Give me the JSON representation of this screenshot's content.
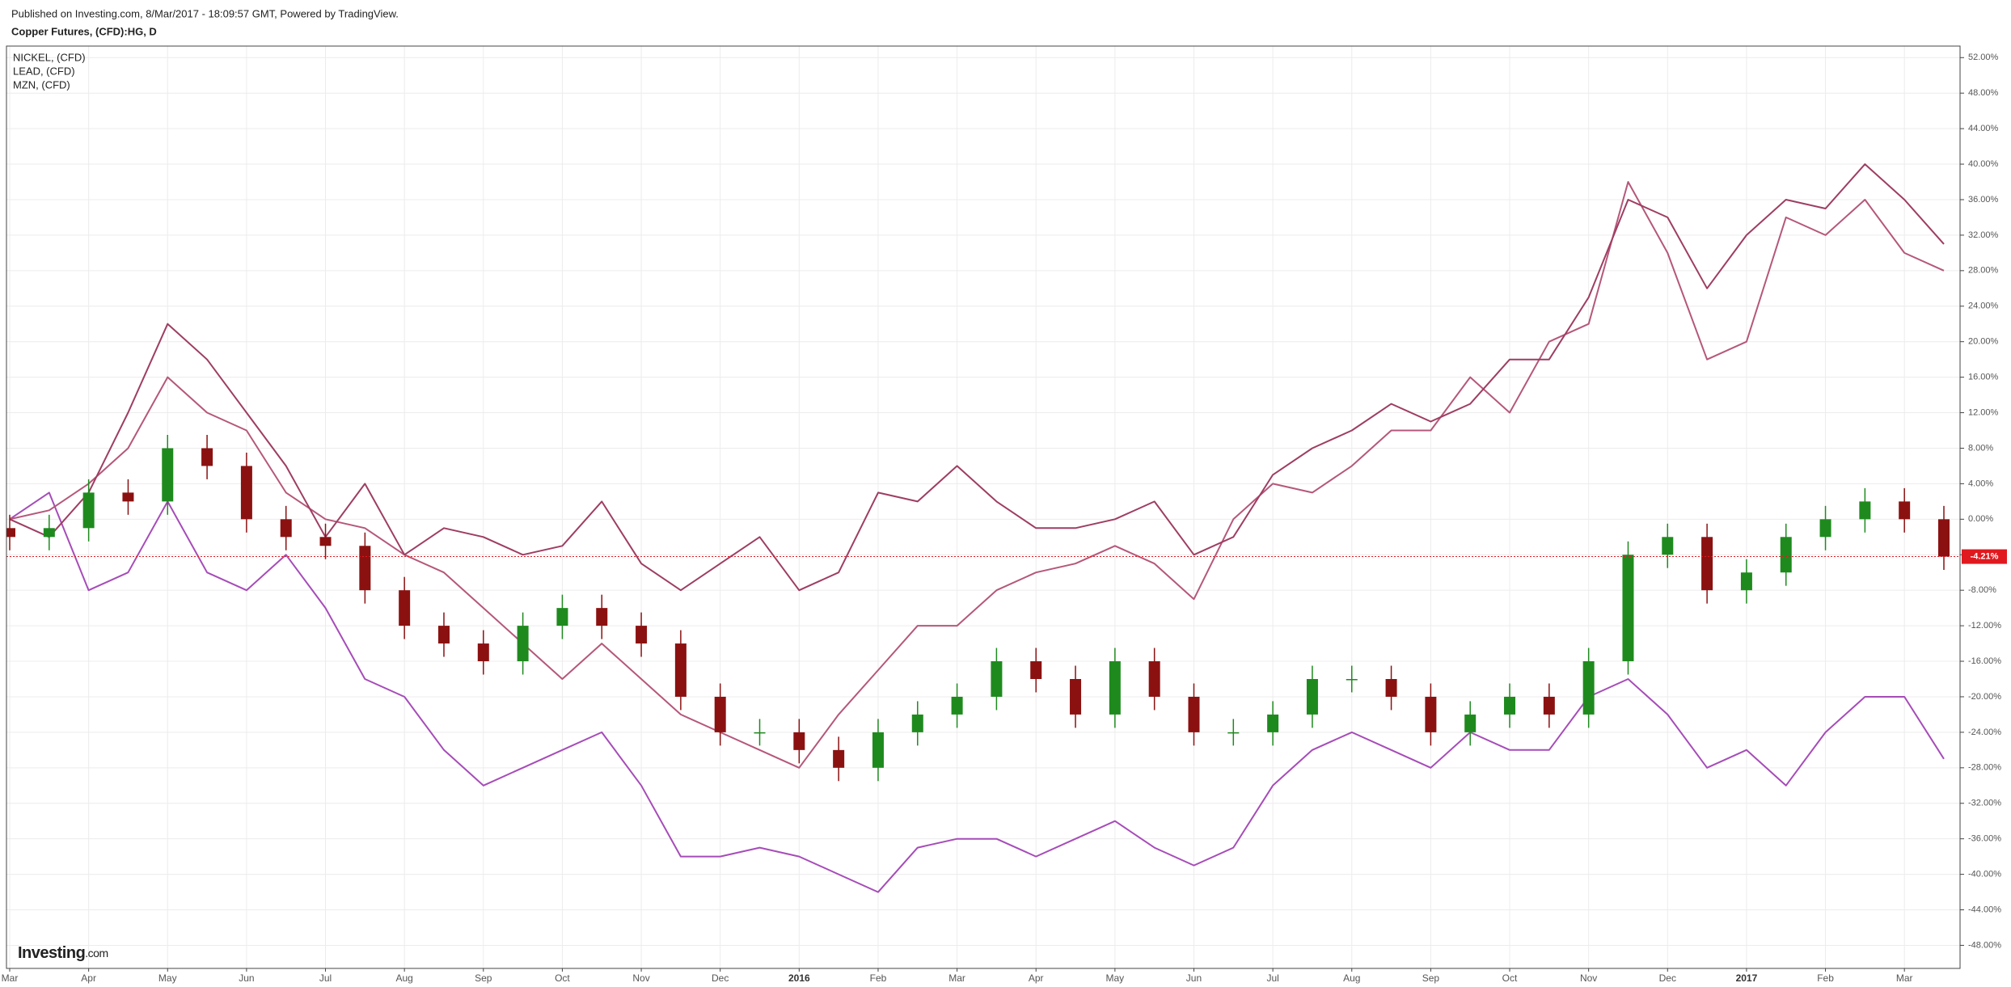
{
  "header": {
    "published": "Published on Investing.com, 8/Mar/2017 - 18:09:57 GMT, Powered by TradingView."
  },
  "logo": [
    "Investing",
    ".com"
  ],
  "chart_data": {
    "type": "candlestick",
    "title": "Copper Futures, (CFD):HG, D",
    "categories": [
      "Mar",
      null,
      "Apr",
      null,
      "May",
      null,
      "Jun",
      null,
      "Jul",
      null,
      "Aug",
      null,
      "Sep",
      null,
      "Oct",
      null,
      "Nov",
      null,
      "Dec",
      null,
      "2016",
      null,
      "Feb",
      null,
      "Mar",
      null,
      "Apr",
      null,
      "May",
      null,
      "Jun",
      null,
      "Jul",
      null,
      "Aug",
      null,
      "Sep",
      null,
      "Oct",
      null,
      "Nov",
      null,
      "Dec",
      null,
      "2017",
      null,
      "Feb",
      null,
      "Mar",
      null
    ],
    "open": [
      -1,
      -2,
      -1,
      3,
      2,
      8,
      6,
      0,
      -2,
      -3,
      -8,
      -12,
      -14,
      -16,
      -12,
      -10,
      -12,
      -14,
      -20,
      -24,
      -24,
      -26,
      -28,
      -24,
      -22,
      -20,
      -16,
      -18,
      -22,
      -16,
      -20,
      -24,
      -24,
      -22,
      -18,
      -18,
      -20,
      -24,
      -22,
      -20,
      -22,
      -16,
      -4,
      -2,
      -8,
      -6,
      -2,
      0,
      2,
      0
    ],
    "high": [
      0.5,
      0.5,
      4.5,
      4.5,
      9.5,
      9.5,
      7.5,
      1.5,
      -0.5,
      -1.5,
      -6.5,
      -10.5,
      -12.5,
      -10.5,
      -8.5,
      -8.5,
      -10.5,
      -12.5,
      -18.5,
      -22.5,
      -22.5,
      -24.5,
      -22.5,
      -20.5,
      -18.5,
      -14.5,
      -14.5,
      -16.5,
      -14.5,
      -14.5,
      -18.5,
      -22.5,
      -20.5,
      -16.5,
      -16.5,
      -16.5,
      -18.5,
      -20.5,
      -18.5,
      -18.5,
      -14.5,
      -2.5,
      -0.5,
      -0.5,
      -4.5,
      -0.5,
      1.5,
      3.5,
      3.5,
      1.5
    ],
    "low": [
      -3.5,
      -3.5,
      -2.5,
      0.5,
      0.5,
      4.5,
      -1.5,
      -3.5,
      -4.5,
      -9.5,
      -13.5,
      -15.5,
      -17.5,
      -17.5,
      -13.5,
      -13.5,
      -15.5,
      -21.5,
      -25.5,
      -25.5,
      -27.5,
      -29.5,
      -29.5,
      -25.5,
      -23.5,
      -21.5,
      -19.5,
      -23.5,
      -23.5,
      -21.5,
      -25.5,
      -25.5,
      -25.5,
      -23.5,
      -19.5,
      -21.5,
      -25.5,
      -25.5,
      -23.5,
      -23.5,
      -23.5,
      -17.5,
      -5.5,
      -9.5,
      -9.5,
      -7.5,
      -3.5,
      -1.5,
      -1.5,
      -5.71
    ],
    "close": [
      -2,
      -1,
      3,
      2,
      8,
      6,
      0,
      -2,
      -3,
      -8,
      -12,
      -14,
      -16,
      -12,
      -10,
      -12,
      -14,
      -20,
      -24,
      -24,
      -26,
      -28,
      -24,
      -22,
      -20,
      -16,
      -18,
      -22,
      -16,
      -20,
      -24,
      -24,
      -22,
      -18,
      -18,
      -20,
      -24,
      -22,
      -20,
      -22,
      -16,
      -4,
      -2,
      -8,
      -6,
      -2,
      0,
      2,
      0,
      -4.21
    ],
    "value_labels": [
      null,
      null,
      null,
      null,
      null,
      null,
      null,
      null,
      null,
      null,
      null,
      null,
      null,
      null,
      null,
      null,
      null,
      null,
      null,
      null,
      null,
      null,
      null,
      null,
      null,
      null,
      null,
      null,
      null,
      null,
      null,
      null,
      null,
      null,
      null,
      null,
      null,
      null,
      null,
      null,
      null,
      null,
      null,
      null,
      null,
      null,
      null,
      null,
      null,
      "-4.21%"
    ],
    "up_color": "#1e8a1e",
    "down_color": "#8b1111",
    "last_color": "#e0191f",
    "series": [
      {
        "name": "NICKEL,  (CFD)",
        "color": "#a64cb8",
        "values": [
          0,
          3,
          -8,
          -6,
          2,
          -6,
          -8,
          -4,
          -10,
          -18,
          -20,
          -26,
          -30,
          -28,
          -26,
          -24,
          -30,
          -38,
          -38,
          -37,
          -38,
          -40,
          -42,
          -37,
          -36,
          -36,
          -38,
          -36,
          -34,
          -37,
          -39,
          -37,
          -30,
          -26,
          -24,
          -26,
          -28,
          -24,
          -26,
          -26,
          -20,
          -18,
          -22,
          -28,
          -26,
          -30,
          -24,
          -20,
          -20,
          -27
        ]
      },
      {
        "name": "LEAD,  (CFD)",
        "color": "#b5577a",
        "values": [
          0,
          1,
          4,
          8,
          16,
          12,
          10,
          3,
          0,
          -1,
          -4,
          -6,
          -10,
          -14,
          -18,
          -14,
          -18,
          -22,
          -24,
          -26,
          -28,
          -22,
          -17,
          -12,
          -12,
          -8,
          -6,
          -5,
          -3,
          -5,
          -9,
          0,
          4,
          3,
          6,
          10,
          10,
          16,
          12,
          20,
          22,
          38,
          30,
          18,
          20,
          34,
          32,
          36,
          30,
          28
        ]
      },
      {
        "name": "MZN,  (CFD)",
        "color": "#9e3d62",
        "values": [
          0,
          -2,
          3,
          12,
          22,
          18,
          12,
          6,
          -2,
          4,
          -4,
          -1,
          -2,
          -4,
          -3,
          2,
          -5,
          -8,
          -5,
          -2,
          -8,
          -6,
          3,
          2,
          6,
          2,
          -1,
          -1,
          0,
          2,
          -4,
          -2,
          5,
          8,
          10,
          13,
          11,
          13,
          18,
          18,
          25,
          36,
          34,
          26,
          32,
          36,
          35,
          40,
          36,
          31
        ]
      }
    ],
    "ylim": [
      -50.6,
      53.3
    ],
    "yticks": [
      {
        "value": 52,
        "label": "52.00%"
      },
      {
        "value": 48,
        "label": "48.00%"
      },
      {
        "value": 44,
        "label": "44.00%"
      },
      {
        "value": 40,
        "label": "40.00%"
      },
      {
        "value": 36,
        "label": "36.00%"
      },
      {
        "value": 32,
        "label": "32.00%"
      },
      {
        "value": 28,
        "label": "28.00%"
      },
      {
        "value": 24,
        "label": "24.00%"
      },
      {
        "value": 20,
        "label": "20.00%"
      },
      {
        "value": 16,
        "label": "16.00%"
      },
      {
        "value": 12,
        "label": "12.00%"
      },
      {
        "value": 8,
        "label": "8.00%"
      },
      {
        "value": 4,
        "label": "4.00%"
      },
      {
        "value": 0,
        "label": "0.00%"
      },
      {
        "value": -4,
        "label": "-4.00%"
      },
      {
        "value": -8,
        "label": "-8.00%"
      },
      {
        "value": -12,
        "label": "-12.00%"
      },
      {
        "value": -16,
        "label": "-16.00%"
      },
      {
        "value": -20,
        "label": "-20.00%"
      },
      {
        "value": -24,
        "label": "-24.00%"
      },
      {
        "value": -28,
        "label": "-28.00%"
      },
      {
        "value": -32,
        "label": "-32.00%"
      },
      {
        "value": -36,
        "label": "-36.00%"
      },
      {
        "value": -40,
        "label": "-40.00%"
      },
      {
        "value": -44,
        "label": "-44.00%"
      },
      {
        "value": -48,
        "label": "-48.00%"
      }
    ],
    "grid": true
  }
}
